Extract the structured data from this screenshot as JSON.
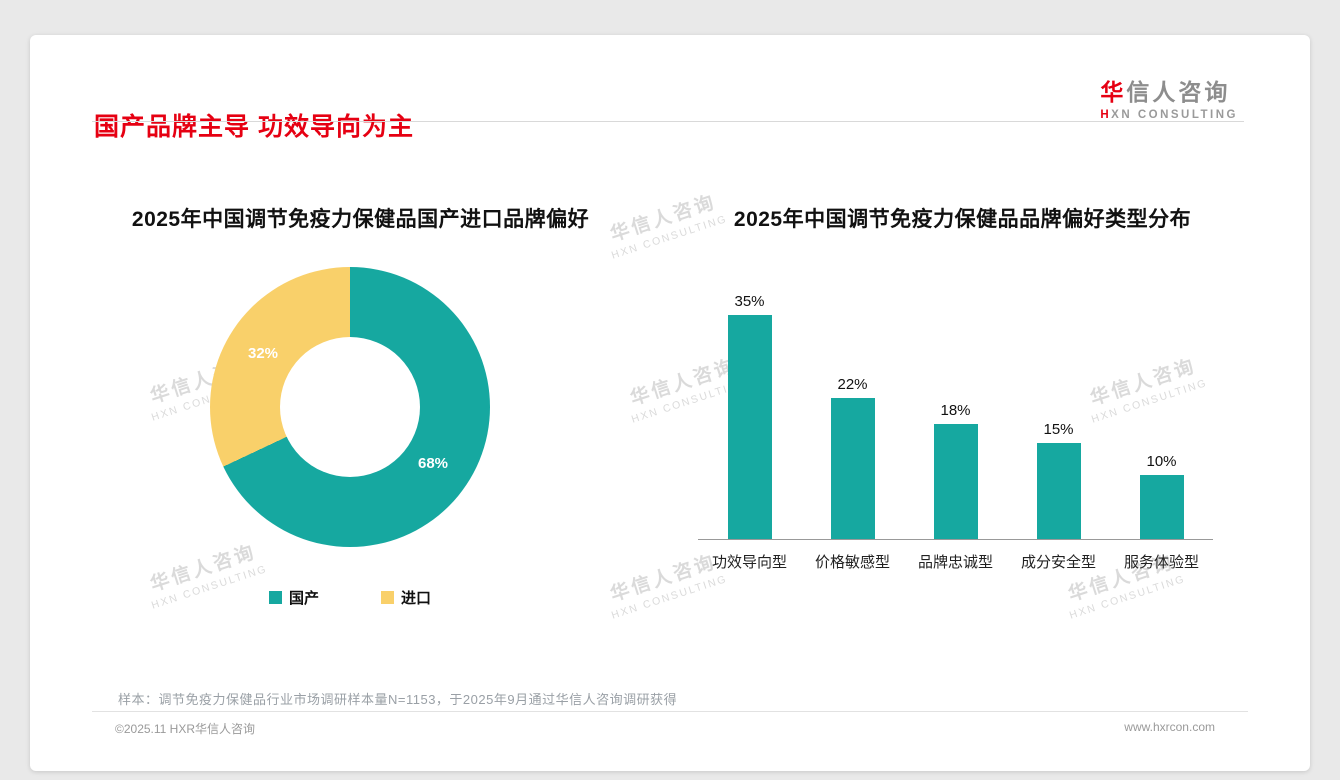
{
  "page": {
    "title": "国产品牌主导 功效导向为主",
    "footnote": "样本：调节免疫力保健品行业市场调研样本量N=1153，于2025年9月通过华信人咨询调研获得",
    "footer_left": "©2025.11 HXR华信人咨询",
    "footer_right": "www.hxrcon.com"
  },
  "logo": {
    "cn": "华信人咨询",
    "en": "HXN CONSULTING"
  },
  "watermark": {
    "cn": "华信人咨询",
    "en": "HXN CONSULTING"
  },
  "colors": {
    "accent_red": "#e60012",
    "teal": "#16a8a0",
    "yellow": "#f9d06a"
  },
  "chart_data": [
    {
      "type": "pie",
      "donut": true,
      "title": "2025年中国调节免疫力保健品国产进口品牌偏好",
      "labels": [
        "国产",
        "进口"
      ],
      "values": [
        68,
        32
      ],
      "value_labels": [
        "68%",
        "32%"
      ],
      "colors": [
        "#16a8a0",
        "#f9d06a"
      ],
      "legend_position": "bottom"
    },
    {
      "type": "bar",
      "title": "2025年中国调节免疫力保健品品牌偏好类型分布",
      "categories": [
        "功效导向型",
        "价格敏感型",
        "品牌忠诚型",
        "成分安全型",
        "服务体验型"
      ],
      "values": [
        35,
        22,
        18,
        15,
        10
      ],
      "value_labels": [
        "35%",
        "22%",
        "18%",
        "15%",
        "10%"
      ],
      "bar_color": "#16a8a0",
      "xlabel": "",
      "ylabel": "",
      "ylim": [
        0,
        38
      ],
      "grid": false,
      "legend_position": "none"
    }
  ]
}
